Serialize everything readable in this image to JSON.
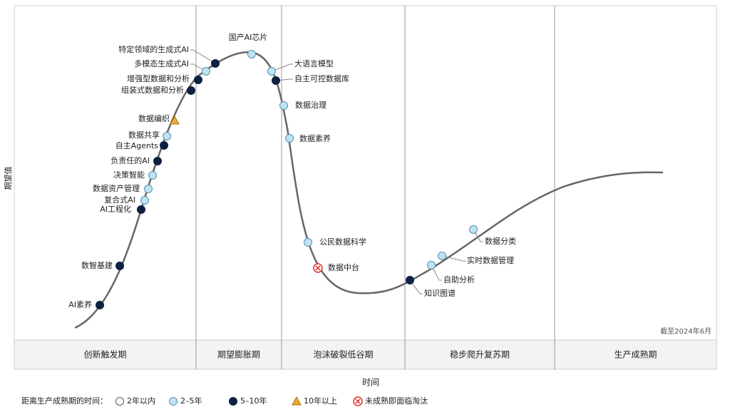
{
  "axes": {
    "y_label": "期望值",
    "x_label": "时间"
  },
  "note": "截至2024年6月",
  "phases": [
    "创新触发期",
    "期望膨胀期",
    "泡沫破裂低谷期",
    "稳步爬升复苏期",
    "生产成熟期"
  ],
  "legend_title": "距离生产成熟期的时间：",
  "groups": [
    {
      "label": "2年以内",
      "technologies": []
    },
    {
      "label": "2–5年",
      "technologies": [
        "复合式AI",
        "数据资产管理",
        "决策智能",
        "数据共享",
        "多模态生成式AI",
        "国产AI芯片",
        "大语言模型",
        "数据治理",
        "数据素养",
        "公民数据科学",
        "自助分析",
        "实时数据管理",
        "数据分类"
      ]
    },
    {
      "label": "5–10年",
      "technologies": [
        "AI素养",
        "数智基建",
        "AI工程化",
        "负责任的AI",
        "自主Agents",
        "组装式数据和分析",
        "增强型数据和分析",
        "特定领域的生成式AI",
        "自主可控数据库",
        "知识图谱"
      ]
    },
    {
      "label": "10年以上",
      "technologies": [
        "数据编织"
      ]
    },
    {
      "label": "未成熟即面临淘汰",
      "technologies": [
        "数据中台"
      ]
    }
  ]
}
